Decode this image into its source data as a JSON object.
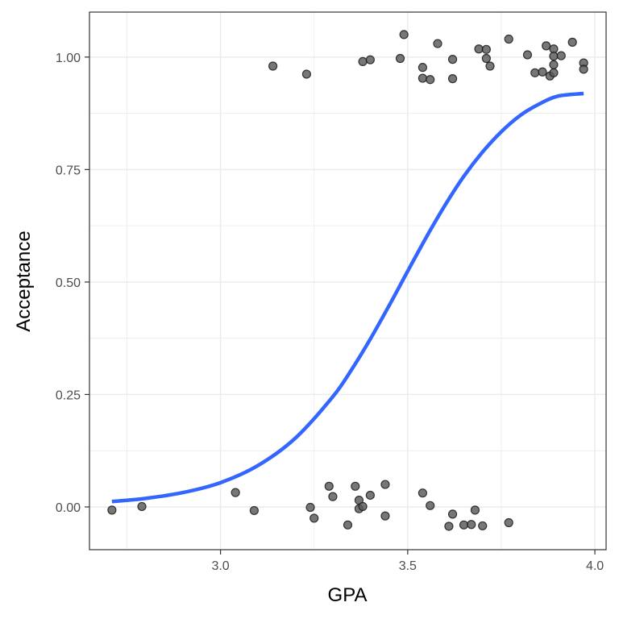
{
  "chart_data": {
    "type": "scatter",
    "title": "",
    "xlabel": "GPA",
    "ylabel": "Acceptance",
    "xlim": [
      2.65,
      4.03
    ],
    "ylim": [
      -0.095,
      1.1
    ],
    "xticks": [
      3.0,
      3.5,
      4.0
    ],
    "xtick_labels": [
      "3.0",
      "3.5",
      "4.0"
    ],
    "yticks": [
      0.0,
      0.25,
      0.5,
      0.75,
      1.0
    ],
    "ytick_labels": [
      "0.00",
      "0.25",
      "0.50",
      "0.75",
      "1.00"
    ],
    "grid": true,
    "legend": "none",
    "colors": {
      "points": "#595959",
      "curve": "#3366ff",
      "grid": "#ebebeb",
      "panel_border": "#333333"
    },
    "series": [
      {
        "type": "scatter",
        "values": [
          {
            "x": 3.14,
            "y": 0.98
          },
          {
            "x": 3.23,
            "y": 0.962
          },
          {
            "x": 3.38,
            "y": 0.99
          },
          {
            "x": 3.4,
            "y": 0.994
          },
          {
            "x": 3.48,
            "y": 0.997
          },
          {
            "x": 3.49,
            "y": 1.05
          },
          {
            "x": 3.54,
            "y": 0.977
          },
          {
            "x": 3.54,
            "y": 0.953
          },
          {
            "x": 3.56,
            "y": 0.95
          },
          {
            "x": 3.58,
            "y": 1.03
          },
          {
            "x": 3.62,
            "y": 0.995
          },
          {
            "x": 3.62,
            "y": 0.952
          },
          {
            "x": 3.69,
            "y": 1.018
          },
          {
            "x": 3.71,
            "y": 1.017
          },
          {
            "x": 3.71,
            "y": 0.997
          },
          {
            "x": 3.72,
            "y": 0.98
          },
          {
            "x": 3.77,
            "y": 1.04
          },
          {
            "x": 3.82,
            "y": 1.005
          },
          {
            "x": 3.84,
            "y": 0.965
          },
          {
            "x": 3.86,
            "y": 0.967
          },
          {
            "x": 3.87,
            "y": 1.025
          },
          {
            "x": 3.88,
            "y": 0.958
          },
          {
            "x": 3.89,
            "y": 1.018
          },
          {
            "x": 3.89,
            "y": 1.002
          },
          {
            "x": 3.89,
            "y": 0.983
          },
          {
            "x": 3.89,
            "y": 0.965
          },
          {
            "x": 3.91,
            "y": 1.003
          },
          {
            "x": 3.94,
            "y": 1.033
          },
          {
            "x": 3.97,
            "y": 0.987
          },
          {
            "x": 3.97,
            "y": 0.973
          },
          {
            "x": 2.71,
            "y": -0.007
          },
          {
            "x": 2.79,
            "y": 0.001
          },
          {
            "x": 3.04,
            "y": 0.032
          },
          {
            "x": 3.09,
            "y": -0.008
          },
          {
            "x": 3.24,
            "y": -0.001
          },
          {
            "x": 3.25,
            "y": -0.025
          },
          {
            "x": 3.29,
            "y": 0.046
          },
          {
            "x": 3.3,
            "y": 0.023
          },
          {
            "x": 3.34,
            "y": -0.04
          },
          {
            "x": 3.36,
            "y": 0.046
          },
          {
            "x": 3.37,
            "y": 0.015
          },
          {
            "x": 3.37,
            "y": -0.004
          },
          {
            "x": 3.38,
            "y": 0.001
          },
          {
            "x": 3.4,
            "y": 0.026
          },
          {
            "x": 3.44,
            "y": 0.05
          },
          {
            "x": 3.44,
            "y": -0.02
          },
          {
            "x": 3.54,
            "y": 0.031
          },
          {
            "x": 3.56,
            "y": 0.003
          },
          {
            "x": 3.61,
            "y": -0.043
          },
          {
            "x": 3.62,
            "y": -0.016
          },
          {
            "x": 3.65,
            "y": -0.04
          },
          {
            "x": 3.67,
            "y": -0.039
          },
          {
            "x": 3.68,
            "y": -0.007
          },
          {
            "x": 3.7,
            "y": -0.042
          },
          {
            "x": 3.77,
            "y": -0.035
          }
        ]
      },
      {
        "type": "line",
        "x": [
          2.71,
          2.8,
          2.9,
          3.0,
          3.1,
          3.2,
          3.3,
          3.35,
          3.4,
          3.45,
          3.5,
          3.55,
          3.6,
          3.65,
          3.7,
          3.75,
          3.8,
          3.85,
          3.9,
          3.97
        ],
        "values": [
          0.012,
          0.019,
          0.032,
          0.054,
          0.092,
          0.153,
          0.245,
          0.305,
          0.373,
          0.447,
          0.524,
          0.6,
          0.671,
          0.735,
          0.789,
          0.834,
          0.87,
          0.895,
          0.913,
          0.919
        ]
      }
    ]
  }
}
